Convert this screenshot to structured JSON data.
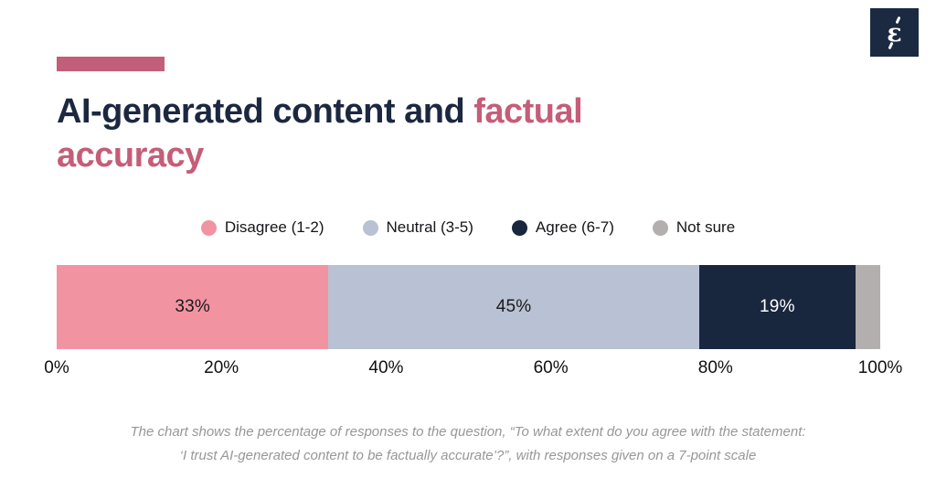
{
  "logo": {
    "glyph": "ε",
    "bg": "#1b2a41",
    "fg": "#ffffff"
  },
  "header": {
    "accent_color": "#c25e79",
    "title_part1": "AI-generated content and ",
    "title_part2": "factual accuracy",
    "title_color1": "#1c2840",
    "title_color2": "#c55d78"
  },
  "legend": [
    {
      "label": "Disagree (1-2)",
      "color": "#f293a2"
    },
    {
      "label": "Neutral (3-5)",
      "color": "#b9c1d4"
    },
    {
      "label": "Agree (6-7)",
      "color": "#18263e"
    },
    {
      "label": "Not sure",
      "color": "#b3afae"
    }
  ],
  "chart_data": {
    "type": "bar",
    "orientation": "horizontal-stacked",
    "title": "AI-generated content and factual accuracy",
    "categories": [
      "Disagree (1-2)",
      "Neutral (3-5)",
      "Agree (6-7)",
      "Not sure"
    ],
    "values": [
      33,
      45,
      19,
      3
    ],
    "segment_labels": [
      "33%",
      "45%",
      "19%",
      ""
    ],
    "colors": [
      "#f293a2",
      "#b9c1d4",
      "#18263e",
      "#b3afae"
    ],
    "label_colors": [
      "#1a1a1a",
      "#1a1a1a",
      "#ffffff",
      "#ffffff"
    ],
    "x_axis_ticks": [
      "0%",
      "20%",
      "40%",
      "60%",
      "80%",
      "100%"
    ],
    "xlim": [
      0,
      100
    ],
    "grid": false,
    "legend_position": "top"
  },
  "footnote": {
    "line1": "The chart shows the percentage of responses to the question, “To what extent do you agree with the statement:",
    "line2": "‘I trust AI-generated content to be factually accurate’?”, with responses given on a 7-point scale"
  }
}
